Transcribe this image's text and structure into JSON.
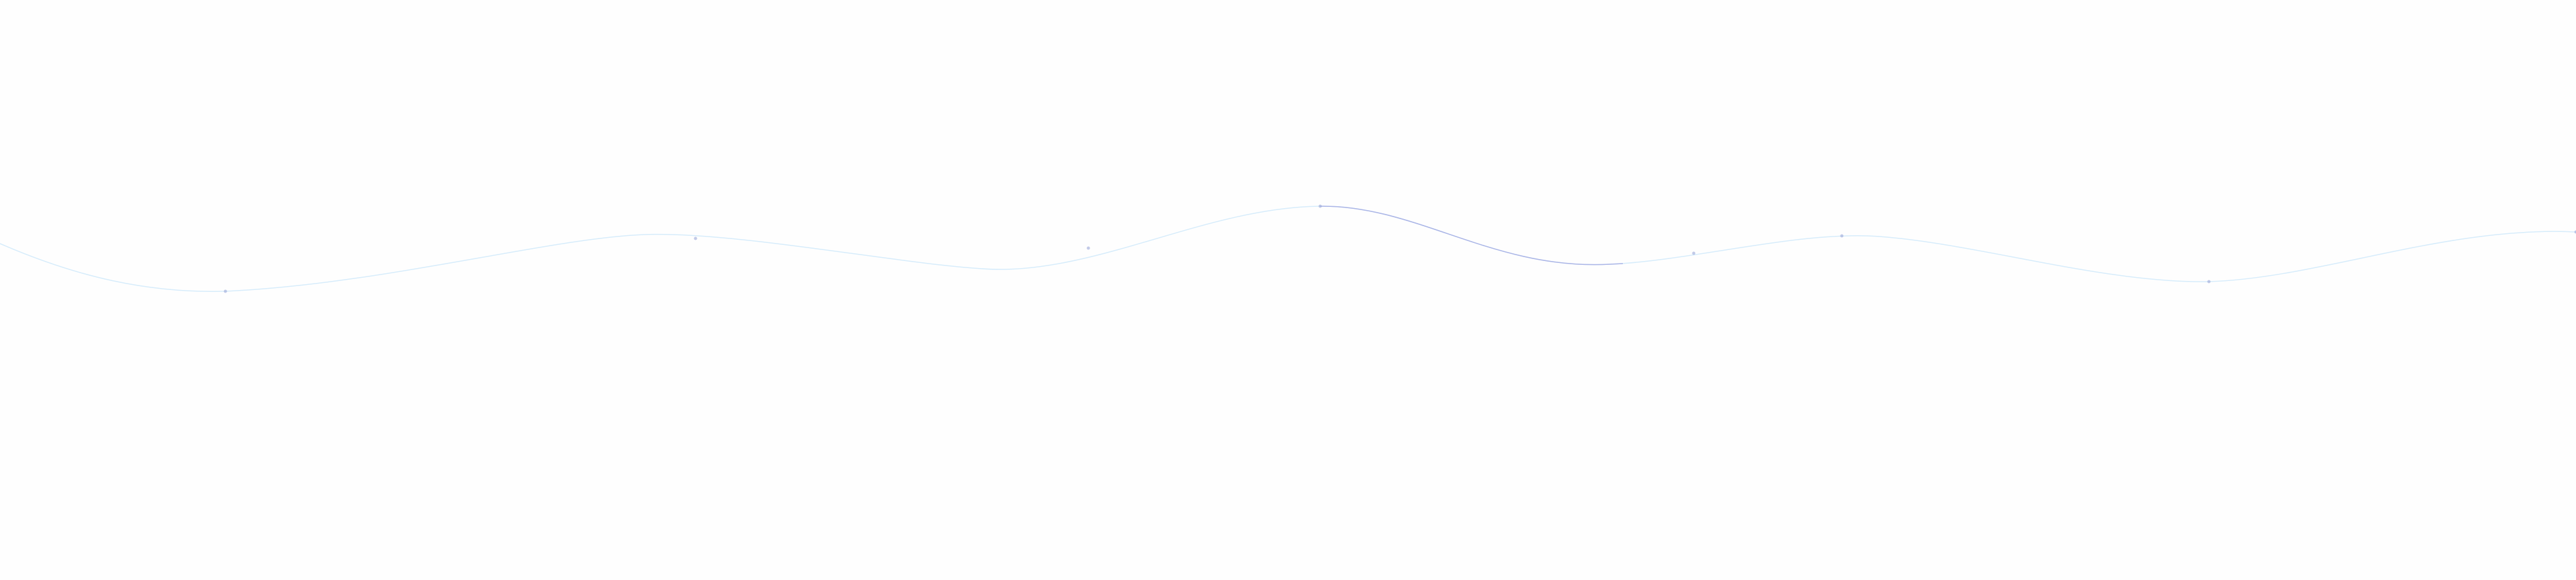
{
  "colors": {
    "background": "#fefefe",
    "wave_faint": "#d6ecfb",
    "wave_highlight": "#aab4e6",
    "marker": "#9aa6d8"
  },
  "decoration": {
    "type": "wave-line",
    "marker_count": 8
  }
}
